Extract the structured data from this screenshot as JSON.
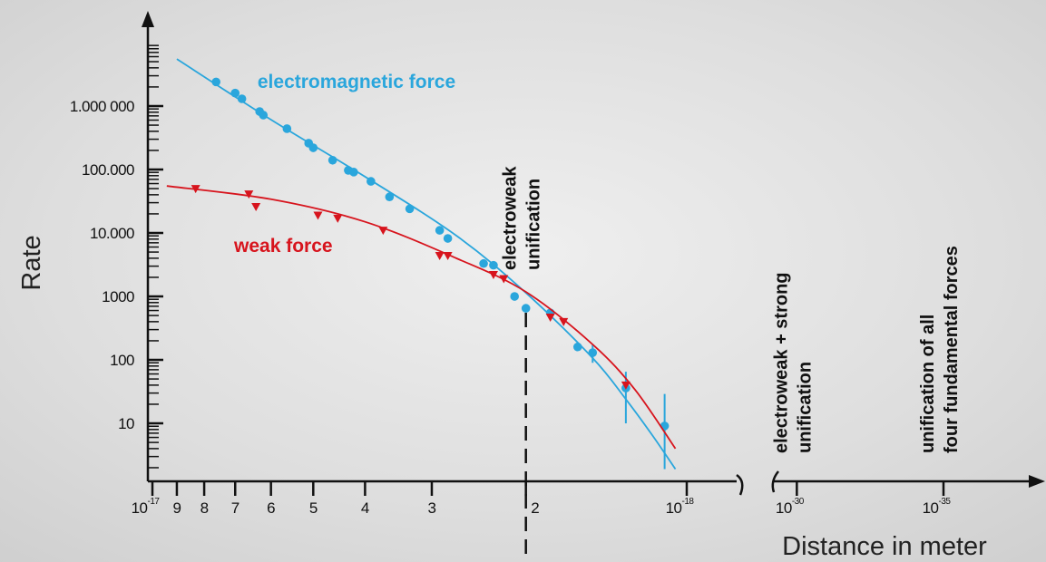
{
  "chart_data": {
    "type": "scatter",
    "xscale": "log",
    "yscale": "log",
    "ylabel": "Rate",
    "xlabel": "Distance in meter",
    "ylim": [
      1.2,
      20000000
    ],
    "yticks": [
      10,
      100,
      1000,
      {
        "value": 10000,
        "label": "10.000"
      },
      {
        "value": 100000,
        "label": "100.000"
      },
      {
        "value": 1000000,
        "label": "1.000 000"
      }
    ],
    "yminorticks": [
      2,
      3,
      4,
      5,
      6,
      7,
      8,
      9,
      20,
      30,
      40,
      50,
      60,
      70,
      80,
      90,
      200,
      300,
      400,
      500,
      600,
      700,
      800,
      900,
      2000,
      3000,
      4000,
      5000,
      6000,
      7000,
      8000,
      9000,
      20000,
      30000,
      40000,
      50000,
      60000,
      70000,
      80000,
      90000,
      200000,
      300000,
      400000,
      500000,
      600000,
      700000,
      800000,
      900000,
      2000000,
      3000000,
      4000000,
      5000000,
      6000000,
      7000000,
      8000000,
      9000000
    ],
    "xlim": [
      1e-17,
      1e-18
    ],
    "xticks": [
      {
        "value": 1e-17,
        "label": "10",
        "exponent": "-17"
      },
      {
        "value": 9e-18,
        "label": "9"
      },
      {
        "value": 8e-18,
        "label": "8"
      },
      {
        "value": 7e-18,
        "label": "7"
      },
      {
        "value": 6e-18,
        "label": "6"
      },
      {
        "value": 5e-18,
        "label": "5"
      },
      {
        "value": 4e-18,
        "label": "4"
      },
      {
        "value": 3e-18,
        "label": "3"
      },
      {
        "value": 2e-18,
        "label": "2"
      },
      {
        "value": 1e-18,
        "label": "10",
        "exponent": "-18"
      }
    ],
    "xlim_far": [
      1e-29,
      1e-38
    ],
    "xticks_far": [
      {
        "value": 1e-30,
        "label": "10",
        "exponent": "-30"
      },
      {
        "value": 1e-35,
        "label": "10",
        "exponent": "-35"
      }
    ],
    "series": [
      {
        "name": "electromagnetic force",
        "color": "#2aa6dc",
        "marker": "circle",
        "x": [
          7.6e-18,
          7e-18,
          6.8e-18,
          6.3e-18,
          6.2e-18,
          5.6e-18,
          5.1e-18,
          5e-18,
          4.6e-18,
          4.3e-18,
          4.2e-18,
          3.9e-18,
          3.6e-18,
          3.3e-18,
          2.9e-18,
          2.8e-18,
          2.4e-18,
          2.3e-18,
          2.1e-18,
          2e-18,
          1.8e-18,
          1.6e-18,
          1.5e-18,
          1.3e-18,
          1.1e-18
        ],
        "values": [
          2400000,
          1600000,
          1300000,
          820000,
          720000,
          440000,
          260000,
          220000,
          140000,
          97000,
          91000,
          65000,
          37000,
          24000,
          11000,
          8200,
          3300,
          3100,
          1000,
          650,
          550,
          160,
          130,
          36,
          9.1
        ],
        "err_low": [
          null,
          null,
          null,
          null,
          null,
          null,
          null,
          null,
          null,
          null,
          null,
          null,
          null,
          null,
          null,
          null,
          null,
          null,
          null,
          null,
          null,
          null,
          90,
          10,
          1.9
        ],
        "err_high": [
          null,
          null,
          null,
          null,
          null,
          null,
          null,
          null,
          null,
          null,
          null,
          null,
          null,
          null,
          null,
          null,
          null,
          null,
          null,
          null,
          null,
          null,
          175,
          65,
          29
        ],
        "fit_x": [
          9e-18,
          6e-18,
          4e-18,
          2.7e-18,
          2e-18,
          1.5e-18,
          1.3e-18,
          1.16e-18,
          1.05e-18
        ],
        "fit_y": [
          5500000,
          610000,
          77000,
          9100,
          1140,
          107,
          24,
          6.5,
          1.9
        ]
      },
      {
        "name": "weak force",
        "color": "#d7141d",
        "marker": "triangle-down",
        "x": [
          8.3e-18,
          6.6e-18,
          6.4e-18,
          4.9e-18,
          4.5e-18,
          3.7e-18,
          2.9e-18,
          2.8e-18,
          2.3e-18,
          2.2e-18,
          1.8e-18,
          1.7e-18,
          1.3e-18
        ],
        "values": [
          50000,
          41000,
          26000,
          19000,
          17000,
          11000,
          4400,
          4400,
          2200,
          1900,
          470,
          400,
          40
        ],
        "fit_x": [
          9.4e-18,
          6e-18,
          4e-18,
          2.7e-18,
          2e-18,
          1.5e-18,
          1.25e-18,
          1.05e-18
        ],
        "fit_y": [
          55000,
          34000,
          15000,
          4000,
          1180,
          175,
          34,
          4.0
        ]
      }
    ],
    "annotations": [
      {
        "lines": [
          "electroweak",
          "unification"
        ],
        "x": 2e-18,
        "axis": "main",
        "line": "dashed"
      },
      {
        "lines": [
          "electroweak + strong",
          "unification"
        ],
        "x": 1e-30,
        "axis": "far"
      },
      {
        "lines": [
          "unification of all",
          "four fundamental forces"
        ],
        "x": 1e-35,
        "axis": "far"
      }
    ]
  }
}
